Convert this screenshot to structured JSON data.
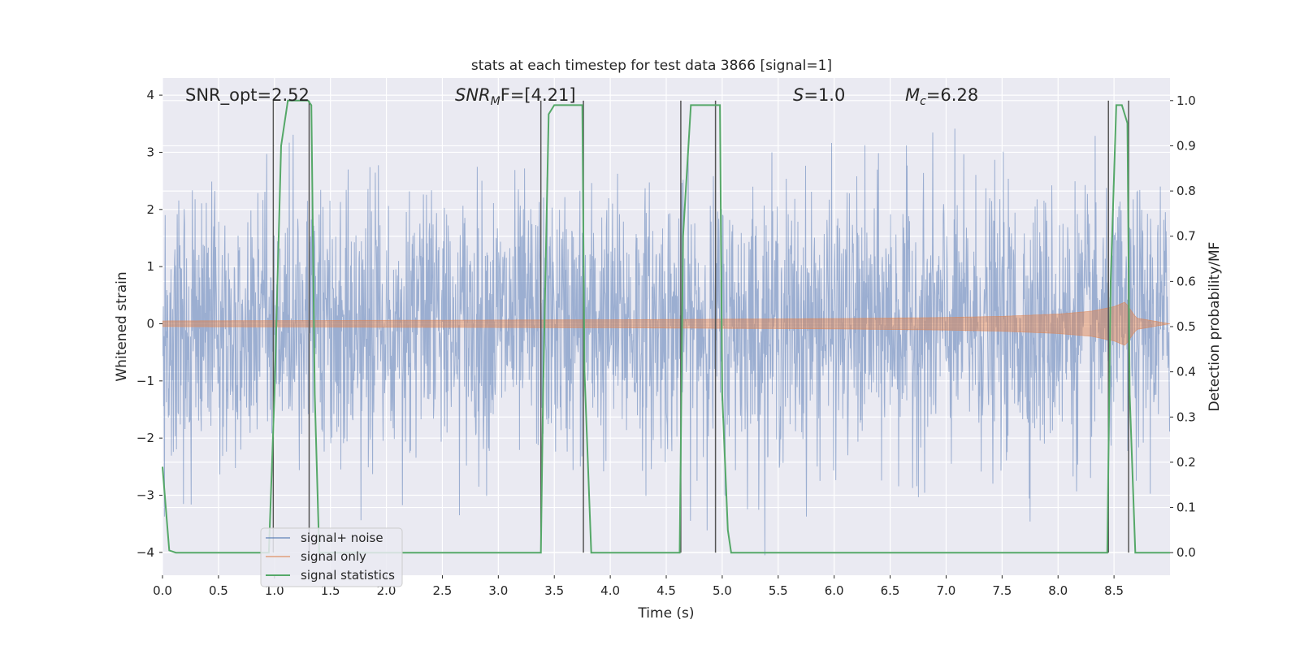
{
  "chart_data": {
    "type": "line",
    "title": "stats at each timestep for test data 3866 [signal=1]",
    "xlabel": "Time (s)",
    "ylabel_left": "Whitened strain",
    "ylabel_right": "Detection probability/MF",
    "xlim": [
      0.0,
      9.0
    ],
    "ylim_left": [
      -4.4,
      4.3
    ],
    "ylim_right": [
      -0.05,
      1.05
    ],
    "x_ticks": [
      "0.0",
      "0.5",
      "1.0",
      "1.5",
      "2.0",
      "2.5",
      "3.0",
      "3.5",
      "4.0",
      "4.5",
      "5.0",
      "5.5",
      "6.0",
      "6.5",
      "7.0",
      "7.5",
      "8.0",
      "8.5"
    ],
    "y_left_ticks": [
      "4",
      "3",
      "2",
      "1",
      "0",
      "−1",
      "−2",
      "−3",
      "−4"
    ],
    "y_right_ticks": [
      "1.0",
      "0.9",
      "0.8",
      "0.7",
      "0.6",
      "0.5",
      "0.4",
      "0.3",
      "0.2",
      "0.1",
      "0.0"
    ],
    "grid": true,
    "legend_position": "lower-left",
    "annotations": {
      "snr_opt": "SNR_opt=2.52",
      "snr_mf_base": "SNR",
      "snr_mf_sub": "M",
      "snr_mf_rest": "F=[4.21]",
      "s_base": "S",
      "s_rest": "=1.0",
      "mc_base": "M",
      "mc_sub": "c",
      "mc_rest": "=6.28"
    },
    "series": [
      {
        "name": "signal+ noise",
        "color": "#4c72b0",
        "description_values": "whitened noisy strain, roughly uniform noise band between about -2.5 and 2.5 with spikes to about 3.9 and -4.0"
      },
      {
        "name": "signal only",
        "color": "#dd8452",
        "envelope": {
          "x": [
            0.0,
            2.0,
            4.0,
            6.0,
            7.0,
            7.5,
            8.0,
            8.3,
            8.5,
            8.6,
            8.7,
            9.0
          ],
          "amplitude": [
            0.05,
            0.06,
            0.07,
            0.09,
            0.11,
            0.13,
            0.17,
            0.22,
            0.3,
            0.38,
            0.1,
            0.0
          ]
        }
      },
      {
        "name": "signal statistics",
        "color": "#55a868",
        "x": [
          0.0,
          0.06,
          0.12,
          0.95,
          1.0,
          1.06,
          1.12,
          1.3,
          1.33,
          1.36,
          1.4,
          1.45,
          3.38,
          3.4,
          3.45,
          3.5,
          3.75,
          3.77,
          3.83,
          3.88,
          4.62,
          4.65,
          4.72,
          4.98,
          5.0,
          5.05,
          5.08,
          8.44,
          8.47,
          8.52,
          8.57,
          8.62,
          8.64,
          8.69,
          8.8,
          9.0
        ],
        "y": [
          0.19,
          0.005,
          0.0,
          0.0,
          0.35,
          0.9,
          1.0,
          1.0,
          0.99,
          0.35,
          0.0,
          0.0,
          0.0,
          0.35,
          0.97,
          0.99,
          0.99,
          0.4,
          0.0,
          0.0,
          0.0,
          0.7,
          0.99,
          0.99,
          0.35,
          0.05,
          0.0,
          0.0,
          0.6,
          0.99,
          0.99,
          0.95,
          0.35,
          0.0,
          0.0,
          0.0
        ]
      }
    ],
    "vertical_markers_x": [
      0.99,
      1.31,
      3.38,
      3.76,
      4.63,
      4.94,
      8.45,
      8.63
    ]
  }
}
